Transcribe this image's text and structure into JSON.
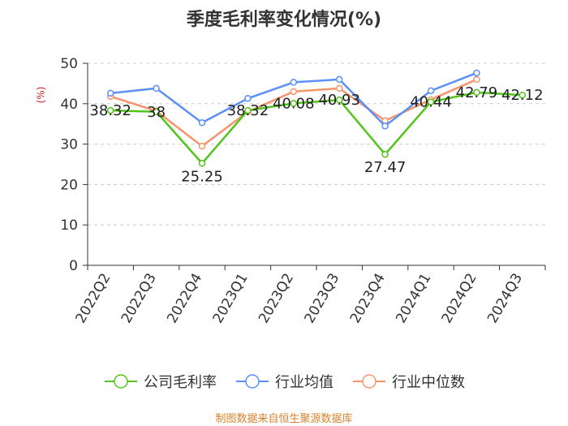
{
  "chart_data": {
    "type": "line",
    "title": "季度毛利率变化情况(%)",
    "ylabel": "(%)",
    "xlabel": "",
    "ylim": [
      0,
      50
    ],
    "yticks": [
      0,
      10,
      20,
      30,
      40,
      50
    ],
    "grid": true,
    "legend_position": "bottom",
    "categories": [
      "2022Q2",
      "2022Q3",
      "2022Q4",
      "2023Q1",
      "2023Q2",
      "2023Q3",
      "2023Q4",
      "2024Q1",
      "2024Q2",
      "2024Q3"
    ],
    "series": [
      {
        "name": "公司毛利率",
        "color": "#52c41a",
        "values": [
          38.32,
          38,
          25.25,
          38.32,
          40.08,
          40.93,
          27.47,
          40.44,
          42.79,
          42.12
        ],
        "labels": [
          "38.32",
          "38",
          "25.25",
          "38.32",
          "40.08",
          "40.93",
          "27.47",
          "40.44",
          "42.79",
          "42.12"
        ]
      },
      {
        "name": "行业均值",
        "color": "#5b8ff9",
        "values": [
          42.6,
          43.8,
          35.3,
          41.3,
          45.3,
          46.0,
          34.5,
          43.2,
          47.6,
          null
        ]
      },
      {
        "name": "行业中位数",
        "color": "#f6946b",
        "values": [
          41.8,
          38.2,
          29.5,
          38.0,
          43.0,
          43.8,
          35.8,
          41.0,
          46.0,
          null
        ]
      }
    ]
  },
  "source": "制图数据来自恒生聚源数据库"
}
